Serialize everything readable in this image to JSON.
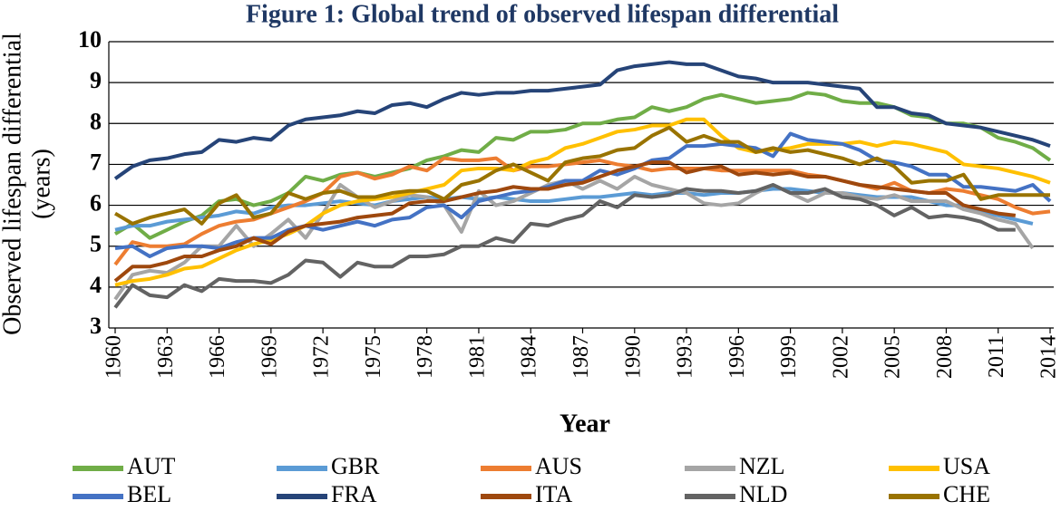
{
  "chart_data": {
    "type": "line",
    "title": "Figure 1: Global trend of observed lifespan differential",
    "ylabel": [
      "Observed lifespan differential",
      "(years)"
    ],
    "xlabel": "Year",
    "xlim": [
      1960,
      2014
    ],
    "xticks": [
      1960,
      1963,
      1966,
      1969,
      1972,
      1975,
      1978,
      1981,
      1984,
      1987,
      1990,
      1993,
      1996,
      1999,
      2002,
      2005,
      2008,
      2011,
      2014
    ],
    "ylim": [
      3,
      10
    ],
    "yticks": [
      3,
      4,
      5,
      6,
      7,
      8,
      9,
      10
    ],
    "grid": true,
    "legend": "bottom",
    "x": [
      1960,
      1961,
      1962,
      1963,
      1964,
      1965,
      1966,
      1967,
      1968,
      1969,
      1970,
      1971,
      1972,
      1973,
      1974,
      1975,
      1976,
      1977,
      1978,
      1979,
      1980,
      1981,
      1982,
      1983,
      1984,
      1985,
      1986,
      1987,
      1988,
      1989,
      1990,
      1991,
      1992,
      1993,
      1994,
      1995,
      1996,
      1997,
      1998,
      1999,
      2000,
      2001,
      2002,
      2003,
      2004,
      2005,
      2006,
      2007,
      2008,
      2009,
      2010,
      2011,
      2012,
      2013,
      2014
    ],
    "series": [
      {
        "name": "AUT",
        "color": "#70ad47",
        "values": [
          5.3,
          5.55,
          5.2,
          5.4,
          5.6,
          5.75,
          6.1,
          6.15,
          6.0,
          6.1,
          6.3,
          6.7,
          6.6,
          6.75,
          6.8,
          6.7,
          6.8,
          6.9,
          7.1,
          7.2,
          7.35,
          7.3,
          7.65,
          7.6,
          7.8,
          7.8,
          7.85,
          8.0,
          8.0,
          8.1,
          8.15,
          8.4,
          8.3,
          8.4,
          8.6,
          8.7,
          8.6,
          8.5,
          8.55,
          8.6,
          8.75,
          8.7,
          8.55,
          8.5,
          8.5,
          8.4,
          8.2,
          8.15,
          8.0,
          8.0,
          7.9,
          7.65,
          7.55,
          7.4,
          7.1
        ]
      },
      {
        "name": "GBR",
        "color": "#5b9bd5",
        "values": [
          5.4,
          5.5,
          5.5,
          5.6,
          5.65,
          5.7,
          5.75,
          5.85,
          5.8,
          5.95,
          6.0,
          6.0,
          6.05,
          6.1,
          6.05,
          6.0,
          6.1,
          6.15,
          6.2,
          6.15,
          6.2,
          6.15,
          6.2,
          6.15,
          6.1,
          6.1,
          6.15,
          6.2,
          6.2,
          6.25,
          6.3,
          6.25,
          6.3,
          6.3,
          6.25,
          6.3,
          6.3,
          6.35,
          6.4,
          6.4,
          6.35,
          6.3,
          6.3,
          6.25,
          6.2,
          6.2,
          6.2,
          6.1,
          6.0,
          6.0,
          5.85,
          5.75,
          5.65,
          5.55,
          null
        ]
      },
      {
        "name": "AUS",
        "color": "#ed7d31",
        "values": [
          4.55,
          5.1,
          5.0,
          5.0,
          5.05,
          5.3,
          5.5,
          5.6,
          5.65,
          5.8,
          5.95,
          6.1,
          6.3,
          6.7,
          6.8,
          6.65,
          6.75,
          6.95,
          6.85,
          7.15,
          7.1,
          7.1,
          7.15,
          6.85,
          6.95,
          6.95,
          7.0,
          7.05,
          7.1,
          7.0,
          6.95,
          6.85,
          6.9,
          6.9,
          6.9,
          6.85,
          6.85,
          6.85,
          6.85,
          6.85,
          6.75,
          6.7,
          6.6,
          6.5,
          6.4,
          6.55,
          6.35,
          6.3,
          6.4,
          6.35,
          6.25,
          6.15,
          5.95,
          5.8,
          5.85
        ]
      },
      {
        "name": "NZL",
        "color": "#a5a5a5",
        "values": [
          3.7,
          4.3,
          4.4,
          4.35,
          4.6,
          5.0,
          5.0,
          5.5,
          5.0,
          5.3,
          5.65,
          5.2,
          5.8,
          6.5,
          6.2,
          5.95,
          6.1,
          6.25,
          6.2,
          6.0,
          5.35,
          6.35,
          6.0,
          6.1,
          6.3,
          6.5,
          6.6,
          6.4,
          6.6,
          6.4,
          6.7,
          6.5,
          6.4,
          6.3,
          6.05,
          6.0,
          6.05,
          6.3,
          6.5,
          6.3,
          6.1,
          6.3,
          6.3,
          6.2,
          6.15,
          6.25,
          6.1,
          6.1,
          6.1,
          5.9,
          5.8,
          5.65,
          5.55,
          4.95,
          null
        ]
      },
      {
        "name": "USA",
        "color": "#ffc000",
        "values": [
          4.05,
          4.15,
          4.2,
          4.3,
          4.45,
          4.5,
          4.7,
          4.9,
          5.05,
          5.15,
          5.3,
          5.5,
          5.8,
          6.0,
          6.1,
          6.15,
          6.2,
          6.3,
          6.4,
          6.5,
          6.85,
          6.9,
          6.9,
          6.85,
          7.05,
          7.15,
          7.4,
          7.5,
          7.65,
          7.8,
          7.85,
          7.95,
          7.95,
          8.1,
          8.1,
          7.7,
          7.4,
          7.3,
          7.35,
          7.4,
          7.5,
          7.5,
          7.5,
          7.55,
          7.45,
          7.55,
          7.5,
          7.4,
          7.3,
          7.0,
          6.95,
          6.9,
          6.8,
          6.7,
          6.55
        ]
      },
      {
        "name": "BEL",
        "color": "#4472c4",
        "values": [
          4.95,
          5.0,
          4.75,
          4.95,
          5.0,
          5.0,
          4.95,
          5.1,
          5.2,
          5.2,
          5.4,
          5.5,
          5.4,
          5.5,
          5.6,
          5.5,
          5.65,
          5.7,
          5.95,
          6.0,
          5.7,
          6.1,
          6.2,
          6.3,
          6.35,
          6.45,
          6.6,
          6.6,
          6.85,
          6.75,
          6.9,
          7.1,
          7.15,
          7.45,
          7.45,
          7.5,
          7.45,
          7.4,
          7.2,
          7.75,
          7.6,
          7.55,
          7.5,
          7.35,
          7.1,
          7.05,
          6.95,
          6.75,
          6.75,
          6.45,
          6.45,
          6.4,
          6.35,
          6.5,
          6.1
        ]
      },
      {
        "name": "FRA",
        "color": "#264478",
        "values": [
          6.65,
          6.95,
          7.1,
          7.15,
          7.25,
          7.3,
          7.6,
          7.55,
          7.65,
          7.6,
          7.95,
          8.1,
          8.15,
          8.2,
          8.3,
          8.25,
          8.45,
          8.5,
          8.4,
          8.6,
          8.75,
          8.7,
          8.75,
          8.75,
          8.8,
          8.8,
          8.85,
          8.9,
          8.95,
          9.3,
          9.4,
          9.45,
          9.5,
          9.45,
          9.45,
          9.3,
          9.15,
          9.1,
          9.0,
          9.0,
          9.0,
          8.95,
          8.9,
          8.85,
          8.4,
          8.4,
          8.25,
          8.2,
          8.0,
          7.95,
          7.9,
          7.8,
          7.7,
          7.6,
          7.45
        ]
      },
      {
        "name": "ITA",
        "color": "#9e480e",
        "values": [
          4.15,
          4.5,
          4.5,
          4.6,
          4.75,
          4.75,
          4.9,
          5.0,
          5.2,
          5.05,
          5.35,
          5.5,
          5.55,
          5.6,
          5.7,
          5.75,
          5.8,
          6.05,
          6.1,
          6.1,
          6.2,
          6.3,
          6.35,
          6.45,
          6.4,
          6.4,
          6.5,
          6.55,
          6.7,
          6.85,
          6.95,
          7.05,
          7.05,
          6.8,
          6.9,
          6.95,
          6.75,
          6.8,
          6.75,
          6.8,
          6.7,
          6.7,
          6.6,
          6.5,
          6.45,
          6.4,
          6.35,
          6.3,
          6.3,
          6.0,
          5.9,
          5.8,
          5.75,
          null,
          null
        ]
      },
      {
        "name": "NLD",
        "color": "#636363",
        "values": [
          3.5,
          4.05,
          3.8,
          3.75,
          4.05,
          3.9,
          4.2,
          4.15,
          4.15,
          4.1,
          4.3,
          4.65,
          4.6,
          4.25,
          4.6,
          4.5,
          4.5,
          4.75,
          4.75,
          4.8,
          5.0,
          5.0,
          5.2,
          5.1,
          5.55,
          5.5,
          5.65,
          5.75,
          6.1,
          5.95,
          6.25,
          6.2,
          6.25,
          6.4,
          6.35,
          6.35,
          6.3,
          6.35,
          6.5,
          6.3,
          6.3,
          6.4,
          6.2,
          6.15,
          6.0,
          5.75,
          5.95,
          5.7,
          5.75,
          5.7,
          5.6,
          5.4,
          5.4,
          null,
          null
        ]
      },
      {
        "name": "CHE",
        "color": "#997300",
        "values": [
          5.8,
          5.55,
          5.7,
          5.8,
          5.9,
          5.55,
          6.05,
          6.25,
          5.7,
          5.8,
          6.3,
          6.15,
          6.3,
          6.35,
          6.2,
          6.2,
          6.3,
          6.35,
          6.35,
          6.15,
          6.5,
          6.6,
          6.85,
          7.0,
          6.8,
          6.6,
          7.05,
          7.15,
          7.2,
          7.35,
          7.4,
          7.7,
          7.9,
          7.55,
          7.7,
          7.55,
          7.55,
          7.3,
          7.4,
          7.3,
          7.35,
          7.25,
          7.15,
          7.0,
          7.15,
          6.95,
          6.55,
          6.6,
          6.6,
          6.75,
          6.15,
          6.25,
          6.25,
          6.25,
          6.25
        ]
      }
    ]
  }
}
